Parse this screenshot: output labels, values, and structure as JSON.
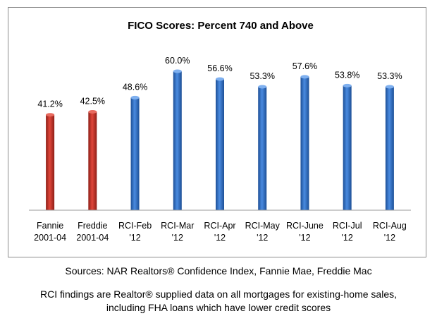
{
  "chart_data": {
    "type": "bar",
    "title": "FICO Scores:  Percent 740 and Above",
    "categories": [
      [
        "Fannie",
        "2001-04"
      ],
      [
        "Freddie",
        "2001-04"
      ],
      [
        "RCI-Feb",
        "'12"
      ],
      [
        "RCI-Mar",
        "'12"
      ],
      [
        "RCI-Apr",
        "'12"
      ],
      [
        "RCI-May",
        "'12"
      ],
      [
        "RCI-June",
        "'12"
      ],
      [
        "RCI-Jul",
        "'12"
      ],
      [
        "RCI-Aug",
        "'12"
      ]
    ],
    "values": [
      41.2,
      42.5,
      48.6,
      60.0,
      56.6,
      53.3,
      57.6,
      53.8,
      53.3
    ],
    "value_labels": [
      "41.2%",
      "42.5%",
      "48.6%",
      "60.0%",
      "56.6%",
      "53.3%",
      "57.6%",
      "53.8%",
      "53.3%"
    ],
    "bar_colors": [
      "#c0392b",
      "#c0392b",
      "#2e6fc4",
      "#2e6fc4",
      "#2e6fc4",
      "#2e6fc4",
      "#2e6fc4",
      "#2e6fc4",
      "#2e6fc4"
    ],
    "xlabel": "",
    "ylabel": "",
    "ylim": [
      0,
      60
    ],
    "grid": false,
    "legend": null
  },
  "footer": {
    "sources": "Sources:  NAR Realtors® Confidence Index, Fannie Mae, Freddie Mac",
    "note_line1": "RCI findings are Realtor® supplied data on all mortgages for existing-home sales,",
    "note_line2": "including FHA loans which have lower credit scores"
  }
}
